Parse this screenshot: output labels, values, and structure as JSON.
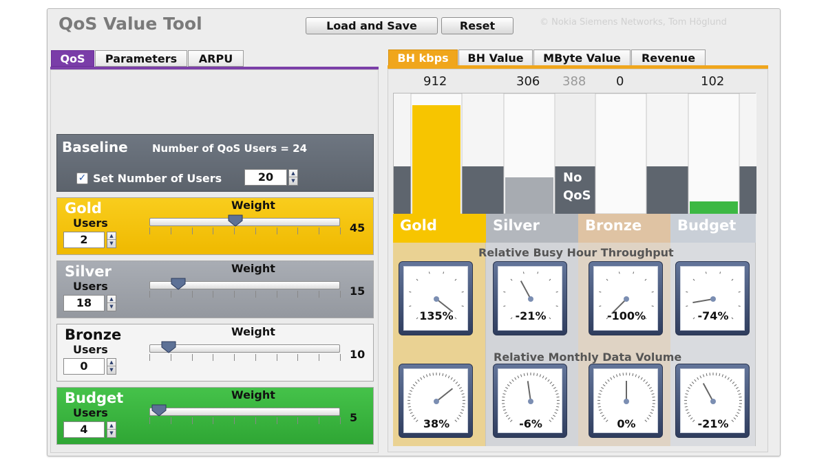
{
  "app": {
    "title": "QoS Value Tool",
    "credit": "© Nokia Siemens Networks, Tom Höglund"
  },
  "toolbar": {
    "load_save": "Load and Save",
    "reset": "Reset"
  },
  "left_tabs": [
    {
      "label": "QoS",
      "active": true
    },
    {
      "label": "Parameters"
    },
    {
      "label": "ARPU"
    }
  ],
  "right_tabs": [
    {
      "label": "BH kbps",
      "active": true
    },
    {
      "label": "BH Value"
    },
    {
      "label": "MByte Value"
    },
    {
      "label": "Revenue"
    }
  ],
  "baseline": {
    "title": "Baseline",
    "info": "Number of QoS Users = 24",
    "set_users_label": "Set Number of Users",
    "set_users_checked": true,
    "users_value": "20"
  },
  "tiers": [
    {
      "name": "Gold",
      "users_label": "Users",
      "users": "2",
      "weight_label": "Weight",
      "weight": "45",
      "weight_fraction": 0.45,
      "color": "#f7c500"
    },
    {
      "name": "Silver",
      "users_label": "Users",
      "users": "18",
      "weight_label": "Weight",
      "weight": "15",
      "weight_fraction": 0.15,
      "color": "#a0a5ad"
    },
    {
      "name": "Bronze",
      "users_label": "Users",
      "users": "0",
      "weight_label": "Weight",
      "weight": "10",
      "weight_fraction": 0.1,
      "color": "#f2f2f2"
    },
    {
      "name": "Budget",
      "users_label": "Users",
      "users": "4",
      "weight_label": "Weight",
      "weight": "5",
      "weight_fraction": 0.05,
      "color": "#39b53c"
    }
  ],
  "bh_kbps": {
    "gold": "912",
    "silver": "306",
    "baseline": "388",
    "bronze": "0",
    "budget": "102",
    "gold_fill": 0.9,
    "silver_fill": 0.3,
    "baseline_fill": 0.38,
    "bronze_fill": 0,
    "budget_fill": 0.1,
    "no_qos_label": "No\nQoS"
  },
  "legend": [
    {
      "label": "Gold",
      "color": "#f7c500"
    },
    {
      "label": "Silver",
      "color": "#b3b7bd"
    },
    {
      "label": "Bronze",
      "color": "#dfc3a3"
    },
    {
      "label": "Budget",
      "color": "#c9cfd7"
    }
  ],
  "throughput": {
    "title": "Relative Busy Hour Throughput",
    "values": [
      "135%",
      "-21%",
      "-100%",
      "-74%"
    ]
  },
  "volume": {
    "title": "Relative Monthly Data Volume",
    "values": [
      "38%",
      "-6%",
      "0%",
      "-21%"
    ]
  },
  "icons": [
    "checkmark-icon",
    "spin-up-icon",
    "spin-down-icon",
    "slider-thumb-icon",
    "gauge-needle-icon"
  ]
}
